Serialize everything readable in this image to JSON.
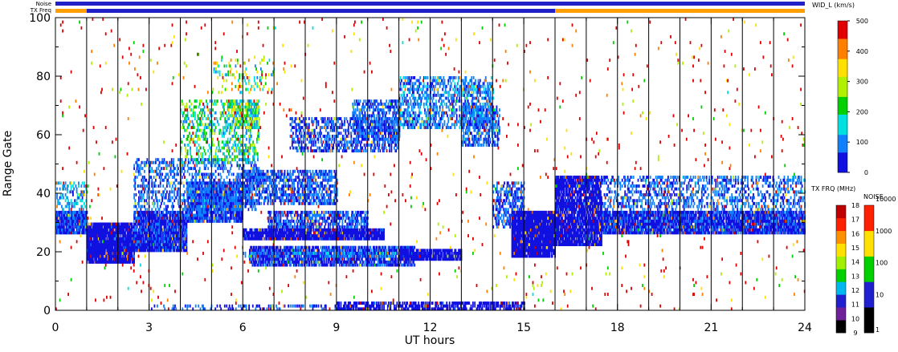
{
  "chart_data": {
    "type": "heatmap",
    "xlabel": "UT hours",
    "ylabel": "Range Gate",
    "xlim": [
      0,
      24
    ],
    "ylim": [
      0,
      100
    ],
    "x_ticks": [
      "0",
      "3",
      "6",
      "9",
      "12",
      "15",
      "18",
      "21",
      "24"
    ],
    "y_ticks": [
      "0",
      "20",
      "40",
      "60",
      "80",
      "100"
    ],
    "x_ticks_values": [
      0,
      3,
      6,
      9,
      12,
      15,
      18,
      21,
      24
    ],
    "y_ticks_values": [
      0,
      20,
      40,
      60,
      80,
      100
    ],
    "scan_boundaries_ut": [
      1,
      2,
      3,
      4,
      5,
      6,
      7,
      8,
      9,
      10,
      11,
      12,
      13,
      14,
      15,
      16,
      17,
      18,
      19,
      20,
      21,
      22,
      23
    ],
    "top_bars": {
      "noise_label": "Noise",
      "txfreq_label": "TX Freq",
      "noise_segments": [
        {
          "start": 0,
          "end": 24,
          "color": "#2020c8"
        }
      ],
      "txfreq_segments": [
        {
          "start": 0,
          "end": 1,
          "color": "#ffa000"
        },
        {
          "start": 1,
          "end": 16,
          "color": "#2020c8"
        },
        {
          "start": 16,
          "end": 24,
          "color": "#ffa000"
        }
      ]
    },
    "width_colorbar": {
      "title": "WID_L (km/s)",
      "ticks": [
        "0",
        "100",
        "200",
        "300",
        "400",
        "500"
      ],
      "range": [
        0,
        500
      ],
      "colors": [
        "#1010e0",
        "#1080ff",
        "#00e0e0",
        "#00d000",
        "#b0f000",
        "#ffe000",
        "#ff8000",
        "#e00000"
      ]
    },
    "txfreq_colorbar": {
      "title": "TX FRQ (MHz)",
      "ticks": [
        "9",
        "10",
        "11",
        "12",
        "13",
        "14",
        "15",
        "16",
        "17",
        "18"
      ],
      "colors": [
        "#000000",
        "#70209a",
        "#2020d0",
        "#00b8f0",
        "#00d000",
        "#a0f000",
        "#ffe000",
        "#ff9000",
        "#ff2000",
        "#c00000"
      ]
    },
    "noise_colorbar": {
      "title": "NOISE",
      "ticks": [
        "1",
        "10",
        "100",
        "1000",
        "10000"
      ],
      "colors": [
        "#000000",
        "#2020d0",
        "#00d000",
        "#ffe000",
        "#ff2000"
      ]
    },
    "echo_regions": [
      {
        "t0": 0.0,
        "t1": 1.0,
        "g0": 26,
        "g1": 34,
        "density": 0.95,
        "w": 60
      },
      {
        "t0": 0.0,
        "t1": 1.0,
        "g0": 34,
        "g1": 44,
        "density": 0.35,
        "w": 120
      },
      {
        "t0": 1.0,
        "t1": 2.5,
        "g0": 16,
        "g1": 30,
        "density": 0.95,
        "w": 40
      },
      {
        "t0": 2.5,
        "t1": 4.2,
        "g0": 20,
        "g1": 34,
        "density": 0.9,
        "w": 50
      },
      {
        "t0": 4.2,
        "t1": 6.0,
        "g0": 30,
        "g1": 44,
        "density": 0.85,
        "w": 60
      },
      {
        "t0": 2.5,
        "t1": 6.5,
        "g0": 34,
        "g1": 52,
        "density": 0.35,
        "w": 80
      },
      {
        "t0": 4.0,
        "t1": 6.5,
        "g0": 50,
        "g1": 72,
        "density": 0.3,
        "w": 180
      },
      {
        "t0": 5.5,
        "t1": 6.5,
        "g0": 62,
        "g1": 72,
        "density": 0.55,
        "w": 220
      },
      {
        "t0": 5.0,
        "t1": 7.0,
        "g0": 74,
        "g1": 86,
        "density": 0.18,
        "w": 250
      },
      {
        "t0": 6.0,
        "t1": 9.0,
        "g0": 36,
        "g1": 48,
        "density": 0.55,
        "w": 70
      },
      {
        "t0": 6.0,
        "t1": 10.5,
        "g0": 24,
        "g1": 28,
        "density": 0.9,
        "w": 40
      },
      {
        "t0": 6.8,
        "t1": 10.0,
        "g0": 28,
        "g1": 34,
        "density": 0.6,
        "w": 60
      },
      {
        "t0": 6.2,
        "t1": 11.5,
        "g0": 15,
        "g1": 22,
        "density": 0.75,
        "w": 50
      },
      {
        "t0": 6.0,
        "t1": 12.0,
        "g0": 18,
        "g1": 20,
        "density": 0.4,
        "w": 90
      },
      {
        "t0": 11.0,
        "t1": 13.0,
        "g0": 17,
        "g1": 21,
        "density": 0.85,
        "w": 30
      },
      {
        "t0": 7.5,
        "t1": 11.0,
        "g0": 54,
        "g1": 66,
        "density": 0.45,
        "w": 60
      },
      {
        "t0": 9.5,
        "t1": 11.0,
        "g0": 58,
        "g1": 72,
        "density": 0.55,
        "w": 70
      },
      {
        "t0": 11.0,
        "t1": 14.0,
        "g0": 62,
        "g1": 80,
        "density": 0.45,
        "w": 90
      },
      {
        "t0": 13.0,
        "t1": 14.2,
        "g0": 56,
        "g1": 70,
        "density": 0.5,
        "w": 80
      },
      {
        "t0": 14.0,
        "t1": 15.0,
        "g0": 28,
        "g1": 44,
        "density": 0.5,
        "w": 70
      },
      {
        "t0": 14.6,
        "t1": 16.0,
        "g0": 18,
        "g1": 34,
        "density": 0.95,
        "w": 30
      },
      {
        "t0": 16.0,
        "t1": 17.5,
        "g0": 22,
        "g1": 46,
        "density": 0.85,
        "w": 40
      },
      {
        "t0": 17.5,
        "t1": 24.0,
        "g0": 26,
        "g1": 34,
        "density": 0.9,
        "w": 50
      },
      {
        "t0": 17.5,
        "t1": 24.0,
        "g0": 34,
        "g1": 46,
        "density": 0.35,
        "w": 80
      },
      {
        "t0": 9.0,
        "t1": 15.0,
        "g0": 0,
        "g1": 3,
        "density": 0.65,
        "w": 40
      },
      {
        "t0": 3.0,
        "t1": 9.0,
        "g0": 0,
        "g1": 2,
        "density": 0.25,
        "w": 60
      },
      {
        "t0": 0.0,
        "t1": 24.0,
        "g0": 0,
        "g1": 100,
        "density": 0.012,
        "w": 450
      }
    ]
  }
}
